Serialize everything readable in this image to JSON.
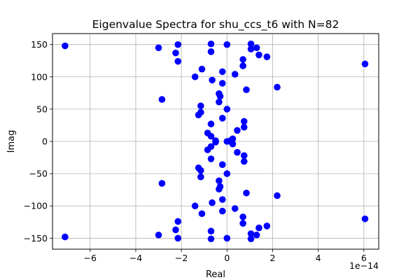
{
  "chart_data": {
    "type": "scatter",
    "title": "Eigenvalue Spectra for shu_ccs_t6 with N=82",
    "xlabel": "Real",
    "ylabel": "Imag",
    "x_offset_label": "1e−14",
    "x_scale": 1e-14,
    "xlim": [
      -7.65,
      6.65
    ],
    "ylim": [
      -167,
      167
    ],
    "x_ticks": [
      -6,
      -4,
      -2,
      0,
      2,
      4,
      6
    ],
    "x_tick_labels": [
      "−6",
      "−4",
      "−2",
      "0",
      "2",
      "4",
      "6"
    ],
    "y_ticks": [
      -150,
      -100,
      -50,
      0,
      50,
      100,
      150
    ],
    "y_tick_labels": [
      "−150",
      "−100",
      "−50",
      "0",
      "50",
      "100",
      "150"
    ],
    "grid": true,
    "marker_color": "#0000ff",
    "series": [
      {
        "points": [
          [
            -7.1,
            148
          ],
          [
            -7.1,
            -148
          ],
          [
            6.05,
            120
          ],
          [
            6.05,
            -120
          ],
          [
            2.2,
            84
          ],
          [
            2.2,
            -84
          ],
          [
            -2.85,
            65
          ],
          [
            -2.85,
            -65
          ],
          [
            -3.0,
            145
          ],
          [
            -3.0,
            -145
          ],
          [
            -2.25,
            137
          ],
          [
            -2.25,
            -137
          ],
          [
            -2.15,
            150
          ],
          [
            -2.15,
            -150
          ],
          [
            -2.15,
            124
          ],
          [
            -2.15,
            -124
          ],
          [
            -1.4,
            100
          ],
          [
            -1.4,
            -100
          ],
          [
            -1.1,
            112
          ],
          [
            -1.1,
            -112
          ],
          [
            -0.7,
            151
          ],
          [
            -0.7,
            -151
          ],
          [
            -0.7,
            139
          ],
          [
            -0.7,
            -139
          ],
          [
            -0.65,
            95
          ],
          [
            -0.65,
            -95
          ],
          [
            -0.2,
            108
          ],
          [
            -0.2,
            -108
          ],
          [
            -0.2,
            90
          ],
          [
            -0.2,
            -90
          ],
          [
            0.0,
            150
          ],
          [
            0.0,
            -150
          ],
          [
            0.35,
            104
          ],
          [
            0.35,
            -104
          ],
          [
            0.7,
            127
          ],
          [
            0.7,
            -127
          ],
          [
            0.7,
            117
          ],
          [
            0.7,
            -117
          ],
          [
            0.85,
            80
          ],
          [
            0.85,
            -80
          ],
          [
            1.05,
            151
          ],
          [
            1.05,
            -151
          ],
          [
            1.05,
            143
          ],
          [
            1.05,
            -143
          ],
          [
            1.3,
            145
          ],
          [
            1.3,
            -145
          ],
          [
            1.4,
            134
          ],
          [
            1.4,
            -134
          ],
          [
            1.75,
            131
          ],
          [
            1.75,
            -131
          ],
          [
            -0.35,
            74
          ],
          [
            -0.35,
            -74
          ],
          [
            -0.3,
            70
          ],
          [
            -0.3,
            -70
          ],
          [
            -0.35,
            61
          ],
          [
            -0.35,
            -61
          ],
          [
            -1.15,
            55
          ],
          [
            -1.15,
            -55
          ],
          [
            -1.15,
            45
          ],
          [
            -1.15,
            -45
          ],
          [
            -1.25,
            41
          ],
          [
            -1.25,
            -41
          ],
          [
            -0.2,
            36
          ],
          [
            -0.2,
            -36
          ],
          [
            0.0,
            50
          ],
          [
            0.0,
            -50
          ],
          [
            -0.7,
            27
          ],
          [
            -0.7,
            -27
          ],
          [
            0.75,
            31
          ],
          [
            0.75,
            -31
          ],
          [
            0.75,
            22
          ],
          [
            0.75,
            -22
          ],
          [
            0.45,
            17
          ],
          [
            0.45,
            -17
          ],
          [
            -0.85,
            13
          ],
          [
            -0.85,
            -13
          ],
          [
            -0.7,
            8
          ],
          [
            -0.7,
            -8
          ],
          [
            -0.5,
            1
          ],
          [
            -0.5,
            -1
          ],
          [
            0.0,
            0
          ],
          [
            0.15,
            1
          ],
          [
            0.2,
            -1
          ],
          [
            0.25,
            4
          ],
          [
            0.25,
            -4
          ]
        ]
      }
    ]
  }
}
